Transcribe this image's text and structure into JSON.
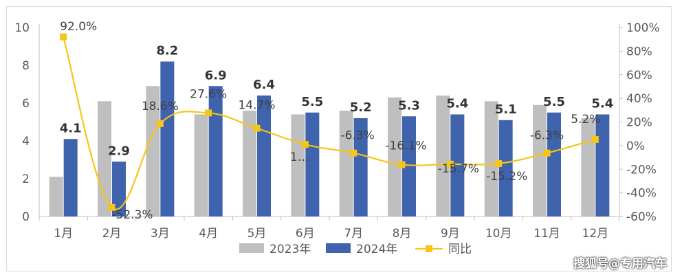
{
  "chart_data": {
    "type": "bar+line",
    "categories": [
      "1月",
      "2月",
      "3月",
      "4月",
      "5月",
      "6月",
      "7月",
      "8月",
      "9月",
      "10月",
      "11月",
      "12月"
    ],
    "series": [
      {
        "name": "2023年",
        "type": "bar",
        "color": "#bfbfbf",
        "values": [
          2.1,
          6.1,
          6.9,
          5.4,
          5.6,
          5.4,
          5.6,
          6.3,
          6.4,
          6.1,
          5.9,
          5.2
        ]
      },
      {
        "name": "2024年",
        "type": "bar",
        "color": "#3f63ad",
        "values": [
          4.1,
          2.9,
          8.2,
          6.9,
          6.4,
          5.5,
          5.2,
          5.3,
          5.4,
          5.1,
          5.5,
          5.4
        ],
        "labels": [
          "4.1",
          "2.9",
          "8.2",
          "6.9",
          "6.4",
          "5.5",
          "5.2",
          "5.3",
          "5.4",
          "5.1",
          "5.5",
          "5.4"
        ]
      },
      {
        "name": "同比",
        "type": "line",
        "color": "#f5c518",
        "axis": "right",
        "values": [
          92.0,
          -52.3,
          18.6,
          27.6,
          14.7,
          1.0,
          -6.3,
          -16.1,
          -15.7,
          -15.2,
          -6.3,
          5.2
        ],
        "labels": [
          "92.0%",
          "-52.3%",
          "18.6%",
          "27.6%",
          "14.7%",
          "1…",
          "-6.3%",
          "-16.1%",
          "-15.7%",
          "-15.2%",
          "-6.3%",
          "5.2%"
        ]
      }
    ],
    "left_axis": {
      "min": 0,
      "max": 10,
      "ticks": [
        "0",
        "2",
        "4",
        "6",
        "8",
        "10"
      ]
    },
    "right_axis": {
      "min": -60,
      "max": 100,
      "ticks": [
        "-60%",
        "-40%",
        "-20%",
        "0%",
        "20%",
        "40%",
        "60%",
        "80%",
        "100%"
      ]
    },
    "grid": false,
    "legend_position": "bottom"
  },
  "watermark": "搜狐号@专用汽车"
}
